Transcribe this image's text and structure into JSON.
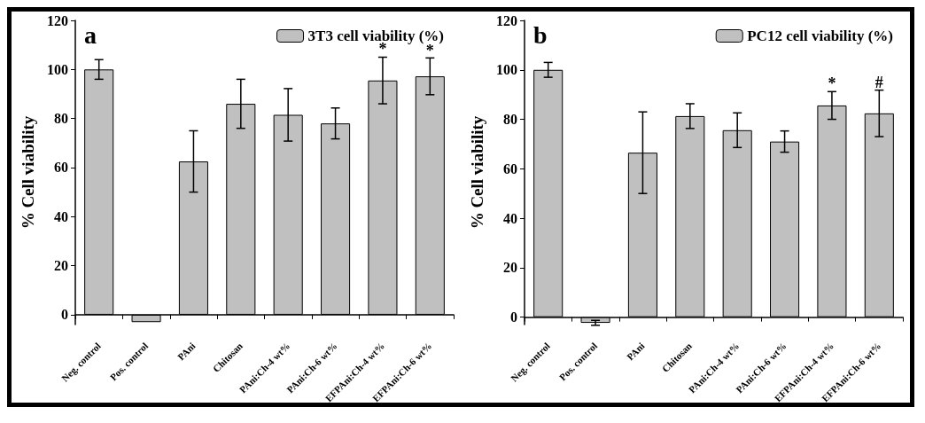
{
  "chart_data": [
    {
      "type": "bar",
      "annotations": [
        "a",
        {
          "text": "*",
          "x": "EFPAni:Ch-4 wt%",
          "y": 105
        },
        {
          "text": "*",
          "x": "EFPAni:Ch-6 wt%",
          "y": 104.6
        }
      ],
      "ylabel": "% Cell viability",
      "categories": [
        "Neg. control",
        "Pos. control",
        "PAni",
        "Chitosan",
        "PAni:Ch-4 wt%",
        "PAni:Ch-6 wt%",
        "EFPAni:Ch-4 wt%",
        "EFPAni:Ch-6 wt%"
      ],
      "series": [
        {
          "name": "3T3 cell viability (%)",
          "color": "#c0c0c0",
          "values": [
            100,
            -3,
            62.5,
            86,
            81.5,
            78,
            95.5,
            97.2
          ],
          "errors": [
            4,
            null,
            12.5,
            10,
            10.7,
            6.3,
            9.5,
            7.5
          ]
        }
      ],
      "ylim": [
        -4,
        120
      ],
      "yticks": [
        0,
        20,
        40,
        60,
        80,
        100,
        120
      ],
      "legend": "top right"
    },
    {
      "type": "bar",
      "annotations": [
        "b",
        {
          "text": "*",
          "x": "EFPAni:Ch-4 wt%",
          "y": 91.2
        },
        {
          "text": "#",
          "x": "EFPAni:Ch-6 wt%",
          "y": 91.8
        }
      ],
      "ylabel": "% Cell viability",
      "categories": [
        "Neg. control",
        "Pos. control",
        "PAni",
        "Chitosan",
        "PAni:Ch-4 wt%",
        "PAni:Ch-6 wt%",
        "EFPAni:Ch-4 wt%",
        "EFPAni:Ch-6 wt%"
      ],
      "series": [
        {
          "name": "PC12 cell viability (%)",
          "color": "#c0c0c0",
          "values": [
            100,
            -2.3,
            66.5,
            81.3,
            75.6,
            71,
            85.6,
            82.4
          ],
          "errors": [
            3,
            1,
            16.5,
            5,
            7,
            4.3,
            5.6,
            9.4
          ]
        }
      ],
      "ylim": [
        -3,
        120
      ],
      "yticks": [
        0,
        20,
        40,
        60,
        80,
        100,
        120
      ],
      "legend": "top right"
    }
  ]
}
